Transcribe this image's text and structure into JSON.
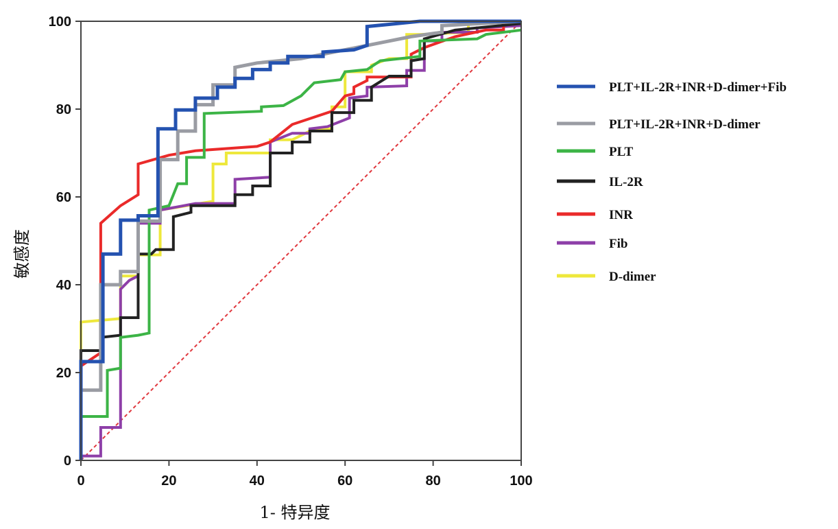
{
  "chart_data": {
    "type": "line",
    "title": "",
    "xlabel": "1- 特异度",
    "ylabel": "敏感度",
    "xlim": [
      0,
      100
    ],
    "ylim": [
      0,
      100
    ],
    "xticks": [
      "0",
      "20",
      "40",
      "60",
      "80",
      "100"
    ],
    "yticks": [
      "0",
      "20",
      "40",
      "60",
      "80",
      "100"
    ],
    "grid": false,
    "legend_position": "right",
    "reference_line": {
      "name": "reference",
      "points": [
        [
          0,
          0
        ],
        [
          100,
          100
        ]
      ],
      "color": "#e0383e",
      "style": "dashed"
    },
    "series": [
      {
        "name": "PLT+IL-2R+INR+D-dimer+Fib",
        "color": "#2452b0",
        "points": [
          [
            0,
            0
          ],
          [
            0,
            22.5
          ],
          [
            5,
            22.5
          ],
          [
            5,
            47
          ],
          [
            9,
            47
          ],
          [
            9,
            54.7
          ],
          [
            13,
            54.7
          ],
          [
            13,
            55.7
          ],
          [
            17.5,
            55.7
          ],
          [
            17.5,
            75.5
          ],
          [
            21.5,
            75.5
          ],
          [
            21.5,
            79.8
          ],
          [
            26,
            79.8
          ],
          [
            26,
            82.5
          ],
          [
            31,
            82.5
          ],
          [
            31,
            85
          ],
          [
            35,
            85
          ],
          [
            35,
            87
          ],
          [
            39,
            87
          ],
          [
            39,
            89
          ],
          [
            43,
            89
          ],
          [
            43,
            90.5
          ],
          [
            47,
            90.5
          ],
          [
            47,
            92
          ],
          [
            55,
            92
          ],
          [
            55,
            93
          ],
          [
            62,
            93.5
          ],
          [
            65,
            94.5
          ],
          [
            65,
            98.8
          ],
          [
            70,
            99.3
          ],
          [
            77,
            100
          ],
          [
            100,
            100
          ]
        ]
      },
      {
        "name": "PLT+IL-2R+INR+D-dimer",
        "color": "#9a9ca3",
        "points": [
          [
            0,
            0
          ],
          [
            0,
            16
          ],
          [
            4.5,
            16
          ],
          [
            4.5,
            40
          ],
          [
            9,
            40
          ],
          [
            9,
            43
          ],
          [
            13,
            43
          ],
          [
            13,
            54.5
          ],
          [
            18,
            54.5
          ],
          [
            18,
            68.5
          ],
          [
            22,
            68.5
          ],
          [
            22,
            75
          ],
          [
            26,
            75
          ],
          [
            26,
            81
          ],
          [
            30,
            81
          ],
          [
            30,
            85.5
          ],
          [
            35,
            85.5
          ],
          [
            35,
            89.5
          ],
          [
            40,
            90.5
          ],
          [
            50,
            91.5
          ],
          [
            60,
            93.5
          ],
          [
            70,
            95.5
          ],
          [
            75,
            96.5
          ],
          [
            82,
            97.5
          ],
          [
            82,
            99
          ],
          [
            100,
            100
          ]
        ]
      },
      {
        "name": "PLT",
        "color": "#3cb446",
        "points": [
          [
            0,
            0
          ],
          [
            0,
            10
          ],
          [
            6,
            10
          ],
          [
            6,
            20.5
          ],
          [
            9,
            21
          ],
          [
            9,
            28
          ],
          [
            13,
            28.5
          ],
          [
            15.5,
            29
          ],
          [
            15.5,
            57
          ],
          [
            20,
            58
          ],
          [
            22,
            63
          ],
          [
            24,
            63
          ],
          [
            24,
            69
          ],
          [
            28,
            69
          ],
          [
            28,
            79
          ],
          [
            41,
            79.5
          ],
          [
            41,
            80.5
          ],
          [
            46,
            80.8
          ],
          [
            50,
            83
          ],
          [
            53,
            86
          ],
          [
            59,
            86.7
          ],
          [
            60,
            88.5
          ],
          [
            65,
            89
          ],
          [
            68,
            91
          ],
          [
            77,
            92
          ],
          [
            77,
            95.5
          ],
          [
            90,
            96
          ],
          [
            92,
            97
          ],
          [
            100,
            98
          ]
        ]
      },
      {
        "name": "IL-2R",
        "color": "#222222",
        "points": [
          [
            0,
            0
          ],
          [
            0,
            25
          ],
          [
            4.5,
            25
          ],
          [
            4.5,
            28
          ],
          [
            9,
            28.5
          ],
          [
            9,
            32.5
          ],
          [
            13,
            32.5
          ],
          [
            13,
            47
          ],
          [
            16,
            47
          ],
          [
            17,
            48
          ],
          [
            21,
            48
          ],
          [
            21,
            55.5
          ],
          [
            25,
            56.5
          ],
          [
            25,
            58
          ],
          [
            35,
            58
          ],
          [
            35,
            60.5
          ],
          [
            39,
            60.5
          ],
          [
            39,
            62.5
          ],
          [
            43,
            62.5
          ],
          [
            43,
            70
          ],
          [
            48,
            70
          ],
          [
            48,
            72.5
          ],
          [
            52,
            72.5
          ],
          [
            52,
            75
          ],
          [
            57,
            75
          ],
          [
            57,
            79.2
          ],
          [
            62,
            79.2
          ],
          [
            62,
            82
          ],
          [
            66,
            82
          ],
          [
            66,
            85
          ],
          [
            70,
            87.5
          ],
          [
            75,
            87.5
          ],
          [
            75,
            91
          ],
          [
            78,
            91.5
          ],
          [
            78,
            96
          ],
          [
            85,
            98
          ],
          [
            100,
            99.5
          ]
        ]
      },
      {
        "name": "INR",
        "color": "#ea2a2a",
        "points": [
          [
            0,
            0
          ],
          [
            0,
            21.5
          ],
          [
            4.5,
            24.5
          ],
          [
            4.5,
            54
          ],
          [
            9,
            58
          ],
          [
            13,
            60.5
          ],
          [
            13,
            67.5
          ],
          [
            20,
            69.5
          ],
          [
            26,
            70.5
          ],
          [
            40,
            71.5
          ],
          [
            43,
            72.5
          ],
          [
            48,
            76.5
          ],
          [
            57,
            79.5
          ],
          [
            60,
            83
          ],
          [
            62,
            83.5
          ],
          [
            62,
            85
          ],
          [
            65,
            86.5
          ],
          [
            65,
            87.3
          ],
          [
            75,
            87.3
          ],
          [
            75,
            92.5
          ],
          [
            78,
            94
          ],
          [
            85,
            96.5
          ],
          [
            92,
            98
          ],
          [
            96,
            98
          ],
          [
            96,
            99.3
          ],
          [
            100,
            99.5
          ]
        ]
      },
      {
        "name": "Fib",
        "color": "#8e3fa8",
        "points": [
          [
            0,
            0
          ],
          [
            0,
            1
          ],
          [
            4.5,
            1
          ],
          [
            4.5,
            7.5
          ],
          [
            9,
            7.5
          ],
          [
            9,
            39
          ],
          [
            11,
            41
          ],
          [
            13,
            42
          ],
          [
            13,
            54
          ],
          [
            18,
            54
          ],
          [
            18,
            57
          ],
          [
            26,
            58.5
          ],
          [
            35,
            58.5
          ],
          [
            35,
            64
          ],
          [
            43,
            64.5
          ],
          [
            43,
            72.5
          ],
          [
            48,
            74.5
          ],
          [
            52,
            74.5
          ],
          [
            52,
            75.5
          ],
          [
            56,
            76
          ],
          [
            61,
            78
          ],
          [
            61,
            82.5
          ],
          [
            65,
            83
          ],
          [
            65,
            85
          ],
          [
            74,
            85.3
          ],
          [
            74,
            88.8
          ],
          [
            78,
            88.8
          ],
          [
            78,
            95.5
          ],
          [
            82,
            95.5
          ],
          [
            82,
            97.5
          ],
          [
            90,
            97.5
          ],
          [
            90,
            98.5
          ],
          [
            100,
            99
          ]
        ]
      },
      {
        "name": "D-dimer",
        "color": "#eee83c",
        "points": [
          [
            0,
            0
          ],
          [
            0,
            31.5
          ],
          [
            9,
            32.3
          ],
          [
            9,
            42
          ],
          [
            13,
            42
          ],
          [
            13,
            46.8
          ],
          [
            18,
            46.8
          ],
          [
            18,
            57
          ],
          [
            24,
            58
          ],
          [
            30,
            59
          ],
          [
            30,
            67.5
          ],
          [
            33,
            67.5
          ],
          [
            33,
            70
          ],
          [
            43,
            70
          ],
          [
            43,
            73
          ],
          [
            48,
            73
          ],
          [
            53,
            75.5
          ],
          [
            57,
            75.5
          ],
          [
            57,
            80.5
          ],
          [
            60,
            80.5
          ],
          [
            60,
            88.5
          ],
          [
            66,
            88.5
          ],
          [
            66,
            90
          ],
          [
            70,
            91.5
          ],
          [
            74,
            91.5
          ],
          [
            74,
            97
          ],
          [
            77,
            97
          ],
          [
            88,
            97.5
          ],
          [
            88,
            100
          ],
          [
            100,
            100
          ]
        ]
      }
    ]
  }
}
